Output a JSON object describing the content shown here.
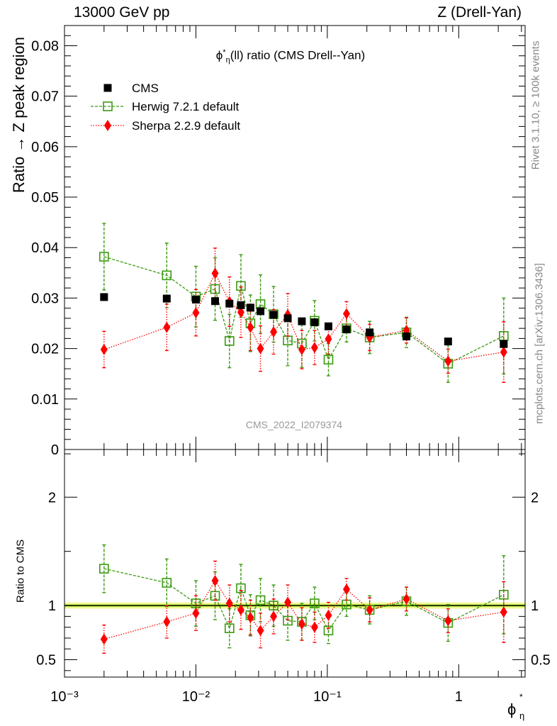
{
  "header": {
    "left": "13000 GeV pp",
    "right": "Z (Drell-Yan)"
  },
  "side": {
    "rivet": "Rivet 3.1.10, ≥ 100k events",
    "mcplots": "mcplots.cern.ch [arXiv:1306.3436]"
  },
  "plot": {
    "title_pre": "ϕ",
    "title_sup": "*",
    "title_sub": "η",
    "title_post": "(ll) ratio (CMS Drell--Yan)",
    "analysis_id": "CMS_2022_I2079374"
  },
  "axes": {
    "ylabel_main": "Ratio → Z peak region",
    "ylabel_ratio": "Ratio to CMS",
    "xlabel_main": "ϕ",
    "xlabel_sup": "*",
    "xlabel_sub": "η"
  },
  "legend": {
    "cms": "CMS",
    "herwig": "Herwig 7.2.1 default",
    "sherpa": "Sherpa 2.2.9 default"
  },
  "colors": {
    "cms": "#000000",
    "herwig": "#3a9a10",
    "sherpa": "#ff0000",
    "band_inner": "#c5f04a",
    "band_outer": "#f6f9a8"
  },
  "chart_data": [
    {
      "type": "scatter",
      "panel": "main",
      "x_scale": "log",
      "xlim": [
        0.001,
        3.2
      ],
      "ylim": [
        0,
        0.084
      ],
      "ylabel": "Ratio → Z peak region",
      "y_ticks": [
        "0",
        "0.01",
        "0.02",
        "0.03",
        "0.04",
        "0.05",
        "0.06",
        "0.07",
        "0.08"
      ],
      "x_ticks": [
        "10⁻³",
        "10⁻²",
        "10⁻¹",
        "1"
      ],
      "x": [
        0.002,
        0.006,
        0.01,
        0.014,
        0.018,
        0.022,
        0.026,
        0.031,
        0.039,
        0.05,
        0.064,
        0.08,
        0.102,
        0.14,
        0.21,
        0.4,
        0.83,
        2.2
      ],
      "series": [
        {
          "name": "CMS",
          "values": [
            0.0302,
            0.0299,
            0.0297,
            0.0294,
            0.0289,
            0.0286,
            0.0281,
            0.0274,
            0.0267,
            0.026,
            0.0254,
            0.0252,
            0.0244,
            0.0238,
            0.0232,
            0.0224,
            0.0214,
            0.0209
          ],
          "errors": [
            0.0003,
            0.0003,
            0.0003,
            0.0003,
            0.0003,
            0.0003,
            0.0003,
            0.0003,
            0.0003,
            0.0003,
            0.0003,
            0.0003,
            0.0003,
            0.0003,
            0.0003,
            0.0003,
            0.0003,
            0.0003
          ]
        },
        {
          "name": "Herwig 7.2.1 default",
          "values": [
            0.0382,
            0.0345,
            0.0303,
            0.0318,
            0.0215,
            0.0324,
            0.025,
            0.0288,
            0.0268,
            0.0216,
            0.021,
            0.0255,
            0.0178,
            0.024,
            0.0222,
            0.0232,
            0.017,
            0.0225
          ],
          "errors": [
            0.0066,
            0.0064,
            0.006,
            0.0062,
            0.0053,
            0.0062,
            0.0056,
            0.0058,
            0.0055,
            0.005,
            0.0047,
            0.004,
            0.0032,
            0.0027,
            0.0032,
            0.003,
            0.0037,
            0.0075
          ]
        },
        {
          "name": "Sherpa 2.2.9 default",
          "values": [
            0.0198,
            0.0242,
            0.0271,
            0.0349,
            0.0293,
            0.0272,
            0.0242,
            0.02,
            0.0233,
            0.0267,
            0.0198,
            0.0202,
            0.0219,
            0.0269,
            0.0222,
            0.0236,
            0.0175,
            0.0193
          ],
          "errors": [
            0.0036,
            0.0046,
            0.0046,
            0.005,
            0.0049,
            0.005,
            0.0046,
            0.0045,
            0.0044,
            0.0042,
            0.0038,
            0.0034,
            0.003,
            0.0024,
            0.0026,
            0.0025,
            0.0024,
            0.006
          ]
        }
      ]
    },
    {
      "type": "scatter",
      "panel": "ratio",
      "x_scale": "log",
      "xlim": [
        0.001,
        3.2
      ],
      "ylim": [
        0.34,
        2.44
      ],
      "ylabel": "Ratio to CMS",
      "y_ticks": [
        "0.5",
        "1",
        "2"
      ],
      "x": [
        0.002,
        0.006,
        0.01,
        0.014,
        0.018,
        0.022,
        0.026,
        0.031,
        0.039,
        0.05,
        0.064,
        0.08,
        0.102,
        0.14,
        0.21,
        0.4,
        0.83,
        2.2
      ],
      "series": [
        {
          "name": "Herwig 7.2.1 default",
          "values": [
            1.34,
            1.21,
            1.02,
            1.09,
            0.79,
            1.16,
            0.91,
            1.05,
            1.0,
            0.86,
            0.85,
            1.02,
            0.77,
            1.01,
            0.96,
            1.04,
            0.84,
            1.1
          ],
          "errors": [
            0.22,
            0.22,
            0.21,
            0.22,
            0.18,
            0.22,
            0.19,
            0.2,
            0.19,
            0.18,
            0.17,
            0.15,
            0.12,
            0.11,
            0.13,
            0.13,
            0.17,
            0.36
          ]
        },
        {
          "name": "Sherpa 2.2.9 default",
          "values": [
            0.69,
            0.85,
            0.93,
            1.23,
            1.02,
            0.96,
            0.89,
            0.77,
            0.9,
            1.03,
            0.83,
            0.8,
            0.91,
            1.15,
            0.96,
            1.06,
            0.86,
            0.94
          ],
          "errors": [
            0.13,
            0.15,
            0.16,
            0.18,
            0.17,
            0.18,
            0.16,
            0.16,
            0.16,
            0.16,
            0.15,
            0.14,
            0.12,
            0.1,
            0.11,
            0.11,
            0.11,
            0.28
          ]
        }
      ]
    }
  ]
}
